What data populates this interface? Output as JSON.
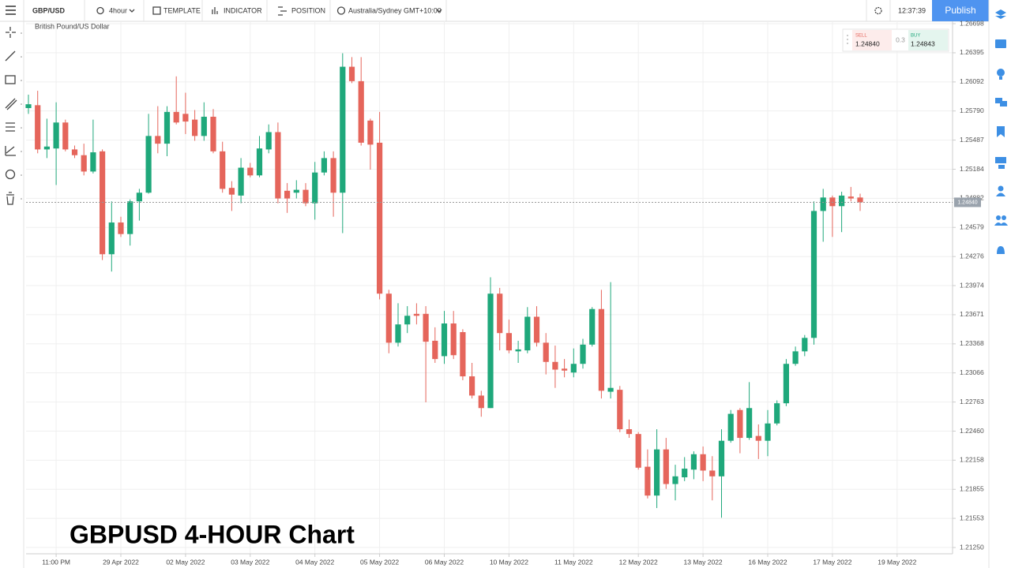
{
  "toolbar": {
    "symbol": "GBP/USD",
    "interval": "4hour",
    "template": "TEMPLATE",
    "indicator": "INDICATOR",
    "position": "POSITION",
    "timezone": "Australia/Sydney GMT+10:00",
    "clock": "12:37:39",
    "publish": "Publish"
  },
  "quote": {
    "sell_label": "SELL",
    "sell_price": "1.24840",
    "spread": "0.3",
    "buy_label": "BUY",
    "buy_price": "1.24843"
  },
  "chart_data": {
    "type": "candlestick",
    "title": "GBPUSD 4-HOUR Chart",
    "subtitle": "British Pound/US Dollar",
    "open": [
      1.2582,
      1.2585,
      1.2539,
      1.254,
      1.2567,
      1.2539,
      1.2533,
      1.2516,
      1.2537,
      1.243,
      1.2463,
      1.2451,
      1.2485,
      1.2494,
      1.2553,
      1.2545,
      1.2578,
      1.2576,
      1.257,
      1.2553,
      1.2573,
      1.2537,
      1.2499,
      1.2491,
      1.252,
      1.2512,
      1.2539,
      1.2557,
      1.2496,
      1.2494,
      1.2497,
      1.2483,
      1.2515,
      1.253,
      1.2494,
      1.2625,
      1.261,
      1.2569,
      1.2546,
      1.2389,
      1.2338,
      1.2357,
      1.2368,
      1.2368,
      1.234,
      1.2324,
      1.2358,
      1.2349,
      1.2303,
      1.2283,
      1.227,
      1.2389,
      1.2348,
      1.2329,
      1.233,
      1.2365,
      1.2338,
      1.2318,
      1.2311,
      1.2307,
      1.2316,
      1.2336,
      1.2373,
      1.2287,
      1.2289,
      1.2248,
      1.2243,
      1.2209,
      1.2179,
      1.2227,
      1.2191,
      1.2198,
      1.2206,
      1.2222,
      1.2205,
      1.2199,
      1.2236,
      1.2268,
      1.2239,
      1.2241,
      1.2236,
      1.2254,
      1.2275,
      1.2316,
      1.2329,
      1.2343,
      1.2475,
      1.2489,
      1.248,
      1.249,
      1.2489
    ],
    "high": [
      1.2596,
      1.26,
      1.2571,
      1.2588,
      1.257,
      1.2543,
      1.2545,
      1.257,
      1.2539,
      1.2485,
      1.2469,
      1.2487,
      1.2498,
      1.2576,
      1.2584,
      1.2584,
      1.2615,
      1.2598,
      1.258,
      1.2588,
      1.2581,
      1.2547,
      1.2506,
      1.253,
      1.2525,
      1.2553,
      1.2565,
      1.2567,
      1.2504,
      1.2507,
      1.2504,
      1.2526,
      1.2537,
      1.2537,
      1.2639,
      1.2635,
      1.2635,
      1.2571,
      1.2578,
      1.2393,
      1.2379,
      1.2376,
      1.2379,
      1.2376,
      1.2354,
      1.2371,
      1.2371,
      1.2352,
      1.2317,
      1.2288,
      1.2406,
      1.2395,
      1.2362,
      1.234,
      1.2375,
      1.2376,
      1.2348,
      1.2335,
      1.2321,
      1.2332,
      1.2342,
      1.2375,
      1.2393,
      1.2401,
      1.2293,
      1.2258,
      1.2245,
      1.2227,
      1.2248,
      1.2239,
      1.2211,
      1.2219,
      1.2225,
      1.223,
      1.222,
      1.2248,
      1.2268,
      1.227,
      1.2297,
      1.2253,
      1.2268,
      1.2278,
      1.2321,
      1.2334,
      1.2346,
      1.2485,
      1.2498,
      1.2491,
      1.2495,
      1.25,
      1.2493
    ],
    "low": [
      1.2576,
      1.2535,
      1.253,
      1.2502,
      1.2537,
      1.253,
      1.2512,
      1.2514,
      1.2424,
      1.2412,
      1.2448,
      1.2439,
      1.2465,
      1.2493,
      1.2535,
      1.2532,
      1.2565,
      1.2555,
      1.2548,
      1.2548,
      1.2535,
      1.2494,
      1.2475,
      1.2483,
      1.251,
      1.251,
      1.2535,
      1.2483,
      1.2473,
      1.2488,
      1.248,
      1.2466,
      1.2512,
      1.2469,
      1.2452,
      1.2608,
      1.2543,
      1.2518,
      1.2383,
      1.2327,
      1.2334,
      1.2348,
      1.2357,
      1.2276,
      1.2317,
      1.2316,
      1.2321,
      1.2299,
      1.228,
      1.2261,
      1.227,
      1.233,
      1.2327,
      1.2317,
      1.2327,
      1.2334,
      1.2305,
      1.2291,
      1.2302,
      1.2302,
      1.2311,
      1.2334,
      1.228,
      1.228,
      1.2245,
      1.2239,
      1.2206,
      1.2176,
      1.2166,
      1.2186,
      1.2174,
      1.2194,
      1.2196,
      1.2194,
      1.2174,
      1.2156,
      1.2234,
      1.2223,
      1.2237,
      1.2217,
      1.222,
      1.2252,
      1.2272,
      1.2314,
      1.2324,
      1.2336,
      1.2443,
      1.2448,
      1.2453,
      1.2485,
      1.2475
    ],
    "close": [
      1.2586,
      1.2539,
      1.2542,
      1.2567,
      1.2539,
      1.2533,
      1.2516,
      1.2536,
      1.243,
      1.2463,
      1.2451,
      1.2485,
      1.2494,
      1.2553,
      1.2545,
      1.2578,
      1.2567,
      1.2568,
      1.2553,
      1.2573,
      1.2537,
      1.2498,
      1.2492,
      1.252,
      1.2512,
      1.254,
      1.2557,
      1.2488,
      1.2488,
      1.2497,
      1.2483,
      1.2515,
      1.253,
      1.2494,
      1.2625,
      1.261,
      1.2546,
      1.2544,
      1.2389,
      1.2338,
      1.2357,
      1.2366,
      1.2366,
      1.2339,
      1.2321,
      1.2358,
      1.2325,
      1.2303,
      1.2283,
      1.227,
      1.2389,
      1.2348,
      1.233,
      1.2331,
      1.2365,
      1.2338,
      1.2318,
      1.231,
      1.2309,
      1.2316,
      1.2336,
      1.2373,
      1.2288,
      1.2291,
      1.2248,
      1.2243,
      1.2208,
      1.2179,
      1.2227,
      1.2191,
      1.2199,
      1.2207,
      1.2222,
      1.2205,
      1.2199,
      1.2236,
      1.2264,
      1.2239,
      1.227,
      1.2236,
      1.2254,
      1.2275,
      1.2316,
      1.2329,
      1.2343,
      1.2475,
      1.2489,
      1.248,
      1.2491,
      1.2488,
      1.2484
    ],
    "colors": {
      "up": "#1fa87b",
      "down": "#e5655b"
    },
    "xlim": [
      0,
      100
    ],
    "xticks": [
      {
        "value": 3,
        "label": "11:00 PM"
      },
      {
        "value": 10,
        "label": "29 Apr 2022"
      },
      {
        "value": 17,
        "label": "02 May 2022"
      },
      {
        "value": 24,
        "label": "03 May 2022"
      },
      {
        "value": 31,
        "label": "04 May 2022"
      },
      {
        "value": 38,
        "label": "05 May 2022"
      },
      {
        "value": 45,
        "label": "06 May 2022"
      },
      {
        "value": 52,
        "label": "10 May 2022"
      },
      {
        "value": 59,
        "label": "11 May 2022"
      },
      {
        "value": 66,
        "label": "12 May 2022"
      },
      {
        "value": 73,
        "label": "13 May 2022"
      },
      {
        "value": 80,
        "label": "16 May 2022"
      },
      {
        "value": 87,
        "label": "17 May 2022"
      },
      {
        "value": 94,
        "label": "19 May 2022"
      }
    ],
    "ylim": [
      1.2125,
      1.26698
    ],
    "yticks": [
      1.26698,
      1.26395,
      1.26092,
      {
        "value": 1.2579,
        "label": "1.25790"
      },
      1.25487,
      1.25184,
      1.24882,
      1.24579,
      1.24276,
      1.23974,
      1.23671,
      1.23368,
      1.23066,
      1.22763,
      {
        "value": 1.2246,
        "label": "1.22460"
      },
      1.22158,
      1.21855,
      1.21553,
      {
        "value": 1.2125,
        "label": "1.21250"
      }
    ],
    "grid": true,
    "last_price": {
      "value": 1.2484,
      "label": "1.24840"
    }
  }
}
